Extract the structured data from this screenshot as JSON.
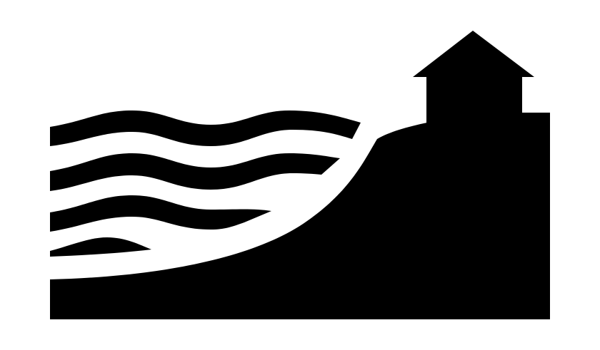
{
  "logo": {
    "icon": "coastal-house-on-cliff-with-waves-icon",
    "colors": {
      "background": "#ffffff",
      "foreground": "#000000"
    }
  }
}
